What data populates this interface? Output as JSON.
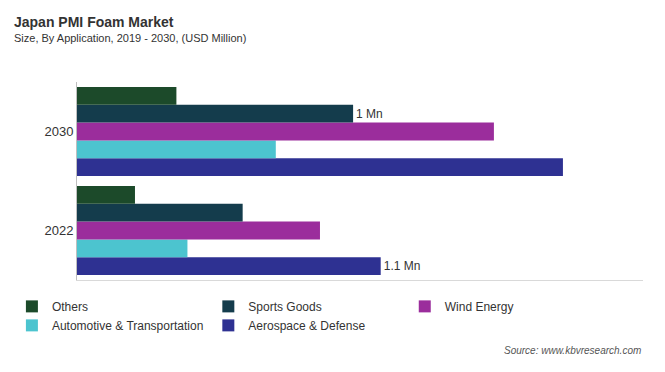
{
  "chart_data": {
    "type": "bar",
    "orientation": "horizontal",
    "title": "Japan PMI Foam Market",
    "subtitle": "Size, By Application, 2019 - 2030, (USD Million)",
    "annotations": [
      "Source: www.kbvresearch.com"
    ],
    "categories": [
      "2022",
      "2030"
    ],
    "xlim": [
      0,
      2.05
    ],
    "tick_labels": "y",
    "grid": false,
    "legend": "bottom left",
    "data_labels": true,
    "series": [
      {
        "name": "Others",
        "color": "#1c4a2a",
        "values": [
          0.21,
          0.36
        ]
      },
      {
        "name": "Sports Goods",
        "color": "#143c4c",
        "values": [
          0.6,
          1
        ],
        "value_labels": [
          null,
          "1 Mn"
        ]
      },
      {
        "name": "Wind Energy",
        "color": "#9b2d9c",
        "values": [
          0.88,
          1.51
        ]
      },
      {
        "name": "Automotive & Transportation",
        "color": "#4cc4cf",
        "values": [
          0.4,
          0.72
        ]
      },
      {
        "name": "Aerospace & Defense",
        "color": "#2e3192",
        "values": [
          1.1,
          1.76
        ],
        "value_labels": [
          "1.1 Mn",
          null
        ]
      }
    ]
  }
}
